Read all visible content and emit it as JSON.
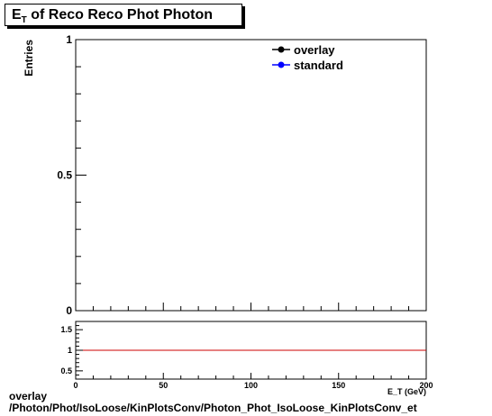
{
  "title": {
    "main": "E",
    "sub": "T",
    "rest": " of Reco Reco Phot Photon"
  },
  "footer": {
    "line1": "overlay",
    "line2": "/Photon/Phot/IsoLoose/KinPlotsConv/Photon_Phot_IsoLoose_KinPlotsConv_et"
  },
  "chart_data": [
    {
      "type": "line",
      "title": "E_T of Reco Reco Phot Photon",
      "ylabel": "Entries",
      "xlim": [
        0,
        200
      ],
      "ylim": [
        0,
        1
      ],
      "y_ticks": [
        {
          "value": 0,
          "label": "0"
        },
        {
          "value": 0.5,
          "label": "0.5"
        },
        {
          "value": 1,
          "label": "1"
        }
      ],
      "series": [
        {
          "name": "overlay",
          "color": "#000000",
          "values": []
        },
        {
          "name": "standard",
          "color": "#0000ff",
          "values": []
        }
      ],
      "legend": "top-right"
    },
    {
      "type": "line",
      "xlabel": "E_T (GeV)",
      "xlim": [
        0,
        200
      ],
      "ylim": [
        0.3,
        1.7
      ],
      "x_ticks": [
        {
          "value": 0,
          "label": "0"
        },
        {
          "value": 50,
          "label": "50"
        },
        {
          "value": 100,
          "label": "100"
        },
        {
          "value": 150,
          "label": "150"
        },
        {
          "value": 200,
          "label": "200"
        }
      ],
      "y_ticks": [
        {
          "value": 0.5,
          "label": "0.5"
        },
        {
          "value": 1,
          "label": "1"
        },
        {
          "value": 1.5,
          "label": "1.5"
        }
      ],
      "reference_line": {
        "y": 1,
        "color": "#cc0000"
      }
    }
  ]
}
